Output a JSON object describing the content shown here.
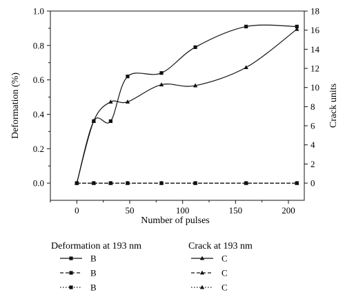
{
  "chart_data": {
    "type": "line",
    "xlabel": "Number of pulses",
    "ylabel_left": "Deformation (%)",
    "ylabel_right": "Crack units",
    "xlim": [
      -25,
      215
    ],
    "ylim_left": [
      -0.1,
      1.0
    ],
    "ylim_right": [
      -1.8,
      18
    ],
    "x_ticks": [
      "0",
      "50",
      "100",
      "150",
      "200"
    ],
    "y_left_ticks": [
      "0.0",
      "0.2",
      "0.4",
      "0.6",
      "0.8",
      "1.0"
    ],
    "y_right_ticks": [
      "0",
      "2",
      "4",
      "6",
      "8",
      "10",
      "12",
      "14",
      "16",
      "18"
    ],
    "grid": false,
    "series": [
      {
        "name": "B",
        "axis": "left",
        "marker": "square",
        "line": "solid",
        "x": [
          0,
          16,
          32,
          48,
          80,
          112,
          160,
          208
        ],
        "y": [
          0.0,
          0.36,
          0.36,
          0.62,
          0.64,
          0.79,
          0.91,
          0.91
        ]
      },
      {
        "name": "B",
        "axis": "left",
        "marker": "square",
        "line": "dashed",
        "x": [
          0,
          16,
          32,
          48,
          80,
          112,
          160,
          208
        ],
        "y": [
          0,
          0,
          0,
          0,
          0,
          0,
          0,
          0
        ]
      },
      {
        "name": "B",
        "axis": "left",
        "marker": "square",
        "line": "dotted",
        "x": [
          0,
          16,
          32,
          48,
          80,
          112,
          160,
          208
        ],
        "y": [
          0,
          0,
          0,
          0,
          0,
          0,
          0,
          0
        ]
      },
      {
        "name": "C",
        "axis": "right",
        "marker": "triangle",
        "line": "solid",
        "x": [
          0,
          16,
          32,
          48,
          80,
          112,
          160,
          208
        ],
        "y": [
          0,
          6.5,
          8.5,
          8.5,
          10.3,
          10.2,
          12.1,
          16.1
        ]
      },
      {
        "name": "C",
        "axis": "right",
        "marker": "triangle",
        "line": "dashed",
        "x": [
          0,
          16,
          32,
          48,
          80,
          112,
          160,
          208
        ],
        "y": [
          0,
          0,
          0,
          0,
          0,
          0,
          0,
          0
        ]
      },
      {
        "name": "C",
        "axis": "right",
        "marker": "triangle",
        "line": "dotted",
        "x": [
          0,
          16,
          32,
          48,
          80,
          112,
          160,
          208
        ],
        "y": [
          0,
          0,
          0,
          0,
          0,
          0,
          0,
          0
        ]
      }
    ],
    "legends": [
      {
        "title": "Deformation at 193 nm",
        "items": [
          "B",
          "B",
          "B"
        ]
      },
      {
        "title": "Crack at 193 nm",
        "items": [
          "C",
          "C",
          "C"
        ]
      }
    ]
  }
}
